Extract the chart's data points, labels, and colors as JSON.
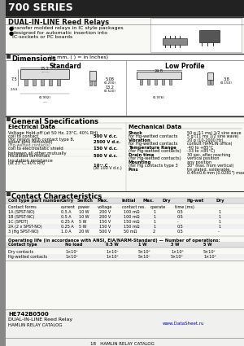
{
  "title": "700 SERIES",
  "subtitle": "DUAL-IN-LINE Reed Relays",
  "bullet1": "transfer molded relays in IC style packages",
  "bullet2": "designed for automatic insertion into\nIC-sockets or PC boards",
  "dim_title": "Dimensions (in mm, ( ) = in Inches)",
  "standard_label": "Standard",
  "low_profile_label": "Low Profile",
  "gen_spec_title": "General Specifications",
  "elec_data_title": "Electrical Data",
  "mech_data_title": "Mechanical Data",
  "contact_char_title": "Contact Characteristics",
  "bg_color": "#f5f5f0",
  "header_bg": "#2a2a2a",
  "section_bg": "#2a2a2a",
  "page_bg": "#ffffff"
}
